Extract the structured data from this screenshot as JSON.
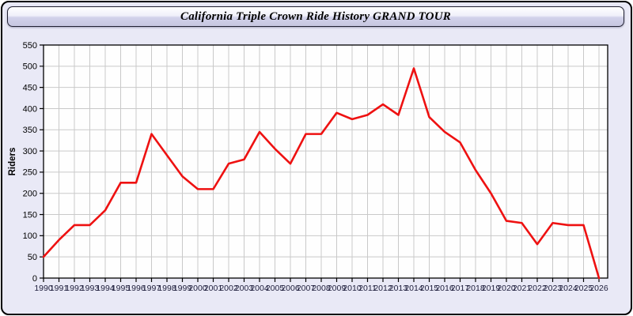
{
  "window": {
    "title": "California Triple Crown Ride History GRAND TOUR"
  },
  "colors": {
    "page_background": "#e9e9f6",
    "plot_background": "#fefefe",
    "gridline": "#c9c9c9",
    "axis_border": "#000000",
    "line_color": "#ee1111",
    "y_tick_label_color": "#000000",
    "x_tick_label_color": "#1c1c3a",
    "title_color": "#000000"
  },
  "chart_data": {
    "type": "line",
    "title": "California Triple Crown Ride History GRAND TOUR",
    "xlabel": "",
    "ylabel": "Riders",
    "ylim": [
      0,
      550
    ],
    "y_tick_step": 50,
    "grid": true,
    "legend_position": "none",
    "series_name": "Riders",
    "categories": [
      1990,
      1991,
      1992,
      1993,
      1994,
      1995,
      1996,
      1997,
      1998,
      1999,
      2000,
      2001,
      2002,
      2003,
      2004,
      2005,
      2006,
      2007,
      2008,
      2009,
      2010,
      2011,
      2012,
      2013,
      2014,
      2015,
      2016,
      2017,
      2018,
      2019,
      2020,
      2021,
      2022,
      2023,
      2024,
      2025,
      2026
    ],
    "values": [
      50,
      90,
      125,
      125,
      160,
      225,
      225,
      340,
      290,
      240,
      210,
      210,
      270,
      280,
      345,
      305,
      270,
      340,
      340,
      390,
      375,
      385,
      410,
      385,
      495,
      380,
      345,
      320,
      255,
      200,
      135,
      130,
      80,
      130,
      125,
      125,
      0
    ]
  }
}
